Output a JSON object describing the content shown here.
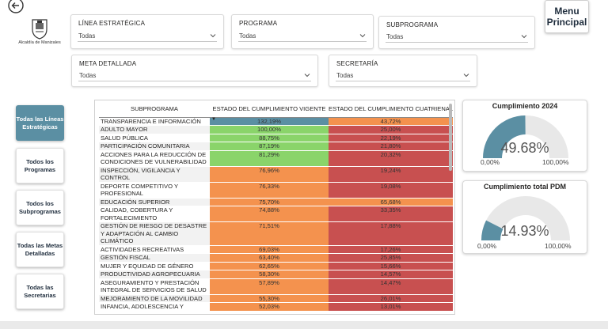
{
  "header": {
    "back_icon": "back-arrow-icon",
    "logo_caption": "Alcaldía de Manizales",
    "menu_label": "Menu Principal"
  },
  "filters": {
    "linea": {
      "title": "LÍNEA ESTRATÉGICA",
      "value": "Todas"
    },
    "programa": {
      "title": "PROGRAMA",
      "value": "Todas"
    },
    "subprograma": {
      "title": "SUBPROGRAMA",
      "value": "Todas"
    },
    "meta": {
      "title": "META DETALLADA",
      "value": "Todas"
    },
    "secretaria": {
      "title": "SECRETARÍA",
      "value": "Todas"
    }
  },
  "nav": [
    {
      "label": "Todas las Líneas Estratégicas",
      "active": true
    },
    {
      "label": "Todos los Programas",
      "active": false
    },
    {
      "label": "Todos los Subprogramas",
      "active": false
    },
    {
      "label": "Todas las Metas Detalladas",
      "active": false
    },
    {
      "label": "Todas las Secretarias",
      "active": false
    }
  ],
  "table": {
    "columns": [
      "SUBPROGRAMA",
      "ESTADO DEL CUMPLIMIENTO VIGENTE",
      "ESTADO DEL CUMPLIMIENTO CUATRIENAL"
    ],
    "rows": [
      {
        "name": "TRANSPARENCIA E INFORMACIÓN",
        "vigente": "132,19%",
        "cuatrienal": "43,72%",
        "vc": "#5b8fa3",
        "cc": "#f4924e"
      },
      {
        "name": "ADULTO MAYOR",
        "vigente": "100,00%",
        "cuatrienal": "25,00%",
        "vc": "#8ad46a",
        "cc": "#c85050"
      },
      {
        "name": "SALUD PÚBLICA",
        "vigente": "88,75%",
        "cuatrienal": "22,19%",
        "vc": "#8ad46a",
        "cc": "#c85050"
      },
      {
        "name": "PARTICIPACIÓN COMUNITARIA",
        "vigente": "87,19%",
        "cuatrienal": "21,80%",
        "vc": "#8ad46a",
        "cc": "#c85050"
      },
      {
        "name": "ACCIONES PARA LA REDUCCIÓN DE CONDICIONES DE VULNERABILIDAD",
        "vigente": "81,29%",
        "cuatrienal": "20,32%",
        "vc": "#8ad46a",
        "cc": "#c85050"
      },
      {
        "name": "INSPECCIÓN, VIGILANCIA Y CONTROL",
        "vigente": "76,96%",
        "cuatrienal": "19,24%",
        "vc": "#f4924e",
        "cc": "#c85050"
      },
      {
        "name": "DEPORTE COMPETITIVO Y PROFESIONAL",
        "vigente": "76,33%",
        "cuatrienal": "19,08%",
        "vc": "#f4924e",
        "cc": "#c85050"
      },
      {
        "name": "EDUCACIÓN SUPERIOR",
        "vigente": "75,70%",
        "cuatrienal": "65,68%",
        "vc": "#f4924e",
        "cc": "#f4924e"
      },
      {
        "name": "CALIDAD, COBERTURA Y FORTALECIMIENTO",
        "vigente": "74,88%",
        "cuatrienal": "33,35%",
        "vc": "#f4924e",
        "cc": "#c85050"
      },
      {
        "name": "GESTIÓN DE RIESGO DE DESASTRE Y ADAPTACIÓN AL CAMBIO CLIMÁTICO",
        "vigente": "71,51%",
        "cuatrienal": "17,88%",
        "vc": "#f4924e",
        "cc": "#c85050"
      },
      {
        "name": "ACTIVIDADES RECREATIVAS",
        "vigente": "69,03%",
        "cuatrienal": "17,26%",
        "vc": "#f4924e",
        "cc": "#c85050"
      },
      {
        "name": "GESTIÓN FISCAL",
        "vigente": "63,40%",
        "cuatrienal": "25,85%",
        "vc": "#f4924e",
        "cc": "#c85050"
      },
      {
        "name": "MUJER Y EQUIDAD DE GÉNERO",
        "vigente": "62,65%",
        "cuatrienal": "15,66%",
        "vc": "#f4924e",
        "cc": "#c85050"
      },
      {
        "name": "PRODUCTIVIDAD AGROPECUARIA",
        "vigente": "58,30%",
        "cuatrienal": "14,57%",
        "vc": "#f4924e",
        "cc": "#c85050"
      },
      {
        "name": "ASEGURAMIENTO Y PRESTACIÓN INTEGRAL DE SERVICIOS DE SALUD",
        "vigente": "57,89%",
        "cuatrienal": "14,47%",
        "vc": "#f4924e",
        "cc": "#c85050"
      },
      {
        "name": "MEJORAMIENTO DE LA MOVILIDAD",
        "vigente": "55,30%",
        "cuatrienal": "26,01%",
        "vc": "#f4924e",
        "cc": "#c85050"
      },
      {
        "name": "INFANCIA, ADOLESCENCIA Y",
        "vigente": "52,03%",
        "cuatrienal": "13,01%",
        "vc": "#f4924e",
        "cc": "#c85050"
      }
    ]
  },
  "gauges": [
    {
      "title": "Cumplimiento 2024",
      "value_text": "49.68%",
      "value": 0.4968,
      "min": "0,00%",
      "max": "100,00%",
      "color": "#5b8fa3"
    },
    {
      "title": "Cumplimiento total PDM",
      "value_text": "14.93%",
      "value": 0.1493,
      "min": "0,00%",
      "max": "100,00%",
      "color": "#5b8fa3"
    }
  ]
}
